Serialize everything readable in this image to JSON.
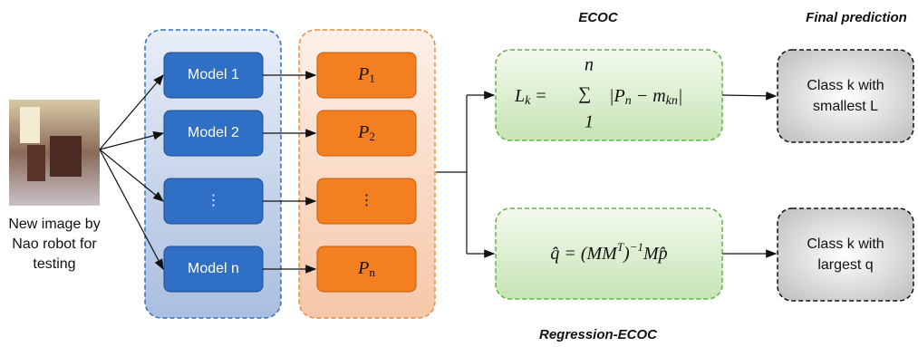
{
  "input": {
    "caption": [
      "New image by",
      "Nao robot for",
      "testing"
    ]
  },
  "models": [
    "Model 1",
    "Model 2",
    "⋮",
    "Model n"
  ],
  "outputs": [
    {
      "text": "P",
      "sub": "1"
    },
    {
      "text": "P",
      "sub": "2"
    },
    {
      "text": "⋮"
    },
    {
      "text": "P",
      "sub": "n"
    }
  ],
  "ecoc": {
    "title": "ECOC",
    "formula": {
      "lhs": "L",
      "lhs_sub": "k",
      "eq": "=",
      "sum": "∑",
      "sum_upper": "n",
      "sum_lower": "1",
      "body": [
        {
          "text": "|P",
          "sub": "n"
        },
        {
          "text": " − m",
          "sub": "kn"
        },
        {
          "text": "|"
        }
      ]
    }
  },
  "regression": {
    "title": "Regression-ECOC",
    "formula": [
      {
        "text": "q̂ = (MM",
        "sup": "T"
      },
      {
        "text": ")",
        "sup": "−1"
      },
      {
        "text": "Mp̂"
      }
    ]
  },
  "final": {
    "title": "Final prediction",
    "ecoc_result": [
      "Class k with",
      "smallest L"
    ],
    "regression_result": [
      "Class k with",
      "largest q"
    ]
  }
}
